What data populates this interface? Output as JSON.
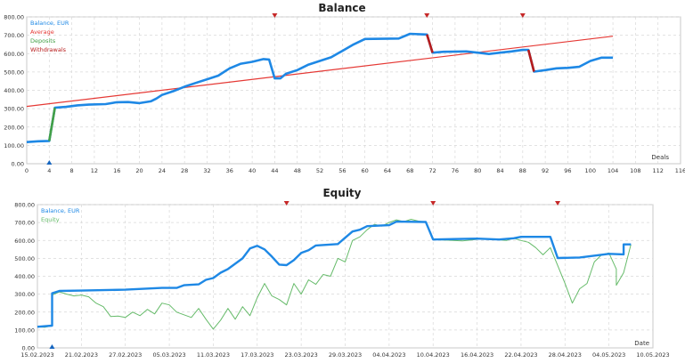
{
  "chart_data": [
    {
      "type": "line",
      "title": "Balance",
      "xlabel": "Deals",
      "xlim": [
        0,
        116
      ],
      "ylim": [
        0,
        800
      ],
      "grid": true,
      "legend_position": "top-left",
      "x_ticks": [
        "0",
        "4",
        "8",
        "12",
        "16",
        "20",
        "24",
        "28",
        "32",
        "36",
        "40",
        "44",
        "48",
        "52",
        "56",
        "60",
        "64",
        "68",
        "72",
        "76",
        "80",
        "84",
        "88",
        "92",
        "96",
        "100",
        "104",
        "108",
        "112",
        "116"
      ],
      "y_ticks": [
        "0.00",
        "100.00",
        "200.00",
        "300.00",
        "400.00",
        "500.00",
        "600.00",
        "700.00",
        "800.00"
      ],
      "colors": {
        "balance": "#1e88e5",
        "average": "#e53935",
        "deposits": "#43a047",
        "withdrawals": "#b71c1c"
      },
      "legend": [
        "Balance, EUR",
        "Average",
        "Deposits",
        "Withdrawals"
      ],
      "series": [
        {
          "name": "Balance, EUR",
          "points": [
            [
              0,
              118
            ],
            [
              2,
              122
            ],
            [
              4,
              124
            ],
            [
              5,
              305
            ],
            [
              7,
              310
            ],
            [
              9,
              318
            ],
            [
              11,
              322
            ],
            [
              14,
              325
            ],
            [
              16,
              335
            ],
            [
              18,
              336
            ],
            [
              20,
              330
            ],
            [
              22,
              340
            ],
            [
              23,
              355
            ],
            [
              24,
              375
            ],
            [
              26,
              395
            ],
            [
              28,
              420
            ],
            [
              30,
              440
            ],
            [
              32,
              460
            ],
            [
              34,
              480
            ],
            [
              36,
              520
            ],
            [
              38,
              545
            ],
            [
              40,
              555
            ],
            [
              42,
              570
            ],
            [
              43,
              568
            ],
            [
              44,
              465
            ],
            [
              45,
              465
            ],
            [
              46,
              490
            ],
            [
              48,
              510
            ],
            [
              50,
              540
            ],
            [
              52,
              560
            ],
            [
              54,
              580
            ],
            [
              56,
              615
            ],
            [
              58,
              650
            ],
            [
              60,
              680
            ],
            [
              66,
              682
            ],
            [
              68,
              708
            ],
            [
              70,
              705
            ],
            [
              71,
              704
            ],
            [
              72,
              605
            ],
            [
              74,
              610
            ],
            [
              78,
              612
            ],
            [
              80,
              605
            ],
            [
              82,
              598
            ],
            [
              84,
              605
            ],
            [
              86,
              612
            ],
            [
              88,
              620
            ],
            [
              89,
              620
            ],
            [
              90,
              502
            ],
            [
              92,
              510
            ],
            [
              94,
              520
            ],
            [
              96,
              522
            ],
            [
              98,
              528
            ],
            [
              100,
              560
            ],
            [
              102,
              578
            ],
            [
              104,
              578
            ]
          ]
        },
        {
          "name": "Average",
          "points": [
            [
              0,
              312
            ],
            [
              104,
              695
            ]
          ]
        }
      ],
      "deposits": [
        [
          4,
          124
        ],
        [
          5,
          305
        ]
      ],
      "withdrawals": [
        [
          [
            71,
            704
          ],
          [
            72,
            605
          ]
        ],
        [
          [
            89,
            620
          ],
          [
            90,
            502
          ]
        ]
      ],
      "markers_top": [
        44,
        71,
        88
      ],
      "markers_bottom": [
        4
      ]
    },
    {
      "type": "line",
      "title": "Equity",
      "xlabel": "Date",
      "xlim": [
        "15.02.2023",
        "10.05.2023"
      ],
      "ylim": [
        0,
        800
      ],
      "grid": true,
      "legend_position": "top-left",
      "x_ticks": [
        "15.02.2023",
        "21.02.2023",
        "27.02.2023",
        "05.03.2023",
        "11.03.2023",
        "17.03.2023",
        "23.03.2023",
        "29.03.2023",
        "04.04.2023",
        "10.04.2023",
        "16.04.2023",
        "22.04.2023",
        "28.04.2023",
        "04.05.2023",
        "10.05.2023"
      ],
      "y_ticks": [
        "0.00",
        "100.00",
        "200.00",
        "300.00",
        "400.00",
        "500.00",
        "600.00",
        "700.00",
        "800.00"
      ],
      "colors": {
        "balance": "#1e88e5",
        "equity": "#66bb6a"
      },
      "legend": [
        "Balance, EUR",
        "Equity"
      ],
      "series": [
        {
          "name": "Balance, EUR",
          "points": [
            [
              "15.02.2023",
              118
            ],
            [
              "17.02.2023",
              124
            ],
            [
              "17.02.2023",
              305
            ],
            [
              "18.02.2023",
              318
            ],
            [
              "21.02.2023",
              320
            ],
            [
              "27.02.2023",
              325
            ],
            [
              "04.03.2023",
              335
            ],
            [
              "06.03.2023",
              335
            ],
            [
              "07.03.2023",
              350
            ],
            [
              "09.03.2023",
              355
            ],
            [
              "10.03.2023",
              380
            ],
            [
              "11.03.2023",
              390
            ],
            [
              "12.03.2023",
              420
            ],
            [
              "13.03.2023",
              440
            ],
            [
              "14.03.2023",
              470
            ],
            [
              "15.03.2023",
              500
            ],
            [
              "16.03.2023",
              555
            ],
            [
              "17.03.2023",
              570
            ],
            [
              "18.03.2023",
              550
            ],
            [
              "19.03.2023",
              510
            ],
            [
              "20.03.2023",
              465
            ],
            [
              "21.03.2023",
              462
            ],
            [
              "22.03.2023",
              490
            ],
            [
              "23.03.2023",
              530
            ],
            [
              "24.03.2023",
              545
            ],
            [
              "25.03.2023",
              572
            ],
            [
              "28.03.2023",
              580
            ],
            [
              "29.03.2023",
              615
            ],
            [
              "30.03.2023",
              650
            ],
            [
              "31.03.2023",
              660
            ],
            [
              "01.04.2023",
              680
            ],
            [
              "04.04.2023",
              685
            ],
            [
              "05.04.2023",
              705
            ],
            [
              "09.04.2023",
              703
            ],
            [
              "10.04.2023",
              605
            ],
            [
              "16.04.2023",
              610
            ],
            [
              "19.04.2023",
              605
            ],
            [
              "21.04.2023",
              612
            ],
            [
              "22.04.2023",
              620
            ],
            [
              "26.04.2023",
              620
            ],
            [
              "27.04.2023",
              502
            ],
            [
              "30.04.2023",
              505
            ],
            [
              "04.05.2023",
              525
            ],
            [
              "06.05.2023",
              522
            ],
            [
              "06.05.2023",
              578
            ],
            [
              "07.05.2023",
              578
            ]
          ]
        },
        {
          "name": "Equity",
          "points": [
            [
              "15.02.2023",
              118
            ],
            [
              "16.02.2023",
              115
            ],
            [
              "17.02.2023",
              124
            ],
            [
              "17.02.2023",
              295
            ],
            [
              "18.02.2023",
              312
            ],
            [
              "19.02.2023",
              300
            ],
            [
              "20.02.2023",
              290
            ],
            [
              "21.02.2023",
              295
            ],
            [
              "22.02.2023",
              285
            ],
            [
              "23.02.2023",
              250
            ],
            [
              "24.02.2023",
              230
            ],
            [
              "25.02.2023",
              175
            ],
            [
              "26.02.2023",
              178
            ],
            [
              "27.02.2023",
              170
            ],
            [
              "28.02.2023",
              200
            ],
            [
              "01.03.2023",
              180
            ],
            [
              "02.03.2023",
              215
            ],
            [
              "03.03.2023",
              190
            ],
            [
              "04.03.2023",
              250
            ],
            [
              "05.03.2023",
              240
            ],
            [
              "06.03.2023",
              200
            ],
            [
              "07.03.2023",
              185
            ],
            [
              "08.03.2023",
              170
            ],
            [
              "09.03.2023",
              220
            ],
            [
              "10.03.2023",
              160
            ],
            [
              "11.03.2023",
              105
            ],
            [
              "12.03.2023",
              155
            ],
            [
              "13.03.2023",
              220
            ],
            [
              "14.03.2023",
              160
            ],
            [
              "15.03.2023",
              230
            ],
            [
              "16.03.2023",
              180
            ],
            [
              "17.03.2023",
              280
            ],
            [
              "18.03.2023",
              360
            ],
            [
              "19.03.2023",
              290
            ],
            [
              "20.03.2023",
              270
            ],
            [
              "21.03.2023",
              240
            ],
            [
              "22.03.2023",
              360
            ],
            [
              "23.03.2023",
              300
            ],
            [
              "24.03.2023",
              380
            ],
            [
              "25.03.2023",
              355
            ],
            [
              "26.03.2023",
              410
            ],
            [
              "27.03.2023",
              400
            ],
            [
              "28.03.2023",
              500
            ],
            [
              "29.03.2023",
              480
            ],
            [
              "30.03.2023",
              600
            ],
            [
              "31.03.2023",
              620
            ],
            [
              "01.04.2023",
              660
            ],
            [
              "02.04.2023",
              690
            ],
            [
              "03.04.2023",
              680
            ],
            [
              "04.04.2023",
              700
            ],
            [
              "05.04.2023",
              715
            ],
            [
              "06.04.2023",
              705
            ],
            [
              "07.04.2023",
              718
            ],
            [
              "08.04.2023",
              708
            ],
            [
              "09.04.2023",
              703
            ],
            [
              "10.04.2023",
              605
            ],
            [
              "14.04.2023",
              598
            ],
            [
              "17.04.2023",
              610
            ],
            [
              "20.04.2023",
              600
            ],
            [
              "21.04.2023",
              612
            ],
            [
              "22.04.2023",
              600
            ],
            [
              "23.04.2023",
              590
            ],
            [
              "24.04.2023",
              560
            ],
            [
              "25.04.2023",
              520
            ],
            [
              "26.04.2023",
              560
            ],
            [
              "27.04.2023",
              460
            ],
            [
              "28.04.2023",
              360
            ],
            [
              "29.04.2023",
              250
            ],
            [
              "30.04.2023",
              330
            ],
            [
              "01.05.2023",
              360
            ],
            [
              "02.05.2023",
              480
            ],
            [
              "03.05.2023",
              520
            ],
            [
              "04.05.2023",
              530
            ],
            [
              "05.05.2023",
              440
            ],
            [
              "05.05.2023",
              350
            ],
            [
              "06.05.2023",
              420
            ],
            [
              "07.05.2023",
              578
            ]
          ]
        }
      ],
      "markers_top": [
        "21.03.2023",
        "10.04.2023",
        "27.04.2023"
      ],
      "markers_bottom": [
        "17.02.2023"
      ]
    }
  ]
}
